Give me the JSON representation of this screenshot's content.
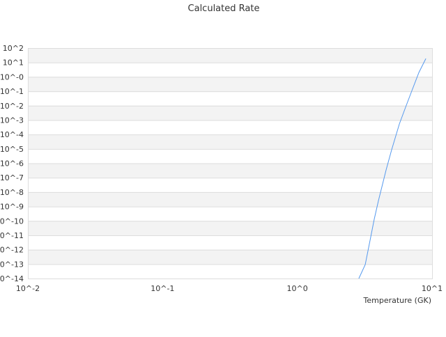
{
  "chart_data": {
    "type": "line",
    "title": "Calculated Rate",
    "xlabel": "Temperature (GK)",
    "ylabel": "",
    "xscale": "log",
    "yscale": "log",
    "xlim": [
      0.01,
      10
    ],
    "ylim": [
      1e-14,
      100
    ],
    "x_ticks": [
      "10^-2",
      "10^-1",
      "10^0",
      "10^1"
    ],
    "y_ticks": [
      "10^2",
      "10^1",
      "10^-0",
      "10^-1",
      "10^-2",
      "10^-3",
      "10^-4",
      "10^-5",
      "10^-6",
      "10^-7",
      "10^-8",
      "10^-9",
      "10^-10",
      "10^-11",
      "10^-12",
      "10^-13",
      "10^-14"
    ],
    "grid": true,
    "alternating_bands": true,
    "legend": "none",
    "series": [
      {
        "color": "#5599ee",
        "x": [
          2.86,
          3.19,
          3.47,
          3.72,
          4.0,
          4.56,
          5.01,
          5.72,
          6.36,
          7.16,
          7.98,
          8.99
        ],
        "y": [
          1e-14,
          9.3e-14,
          4.6e-12,
          1.3e-10,
          2.6e-09,
          3.5e-07,
          8.7e-06,
          0.00054,
          0.0078,
          0.14,
          2.0,
          18.6
        ]
      }
    ]
  }
}
